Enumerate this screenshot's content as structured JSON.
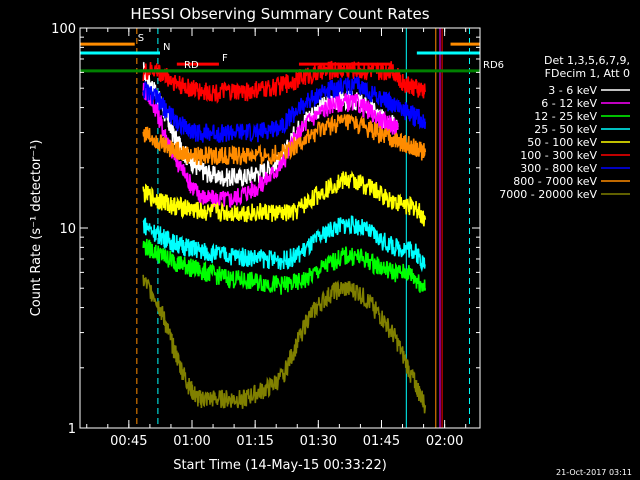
{
  "chart_data": {
    "type": "line",
    "title": "HESSI Observing Summary Count Rates",
    "xlabel": "Start Time (14-May-15 00:33:22)",
    "ylabel": "Count Rate (s⁻¹ detector⁻¹)",
    "y_scale": "log",
    "ylim": [
      1,
      100
    ],
    "xlim_minutes": [
      0,
      95
    ],
    "x_ticks": [
      {
        "label": "00:45",
        "minute": 11.6
      },
      {
        "label": "01:00",
        "minute": 26.6
      },
      {
        "label": "01:15",
        "minute": 41.6
      },
      {
        "label": "01:30",
        "minute": 56.6
      },
      {
        "label": "01:45",
        "minute": 71.6
      },
      {
        "label": "02:00",
        "minute": 86.6
      }
    ],
    "y_ticks": [
      {
        "label": "1",
        "value": 1
      },
      {
        "label": "10",
        "value": 10
      },
      {
        "label": "100",
        "value": 100
      }
    ],
    "legend_header": [
      "Det 1,3,5,6,7,9,",
      "FDecim 1, Att 0"
    ],
    "legend_position": "right",
    "series": [
      {
        "name": "3 - 6 keV",
        "color": "#ffffff",
        "x": [
          15,
          18,
          20,
          22,
          24,
          26,
          28,
          30,
          33,
          36,
          39,
          42,
          45,
          48,
          51,
          54,
          57,
          60,
          63,
          66,
          69,
          72,
          74,
          75.5
        ],
        "y": [
          62,
          48,
          38,
          30,
          25,
          22,
          20,
          19,
          18,
          18,
          18,
          19,
          20,
          22,
          30,
          36,
          40,
          43,
          44,
          43,
          40,
          35,
          34,
          32
        ]
      },
      {
        "name": "6 - 12 keV",
        "color": "#ff00ff",
        "x": [
          15,
          18,
          20,
          22,
          24,
          26,
          28,
          30,
          33,
          36,
          39,
          42,
          45,
          48,
          51,
          54,
          57,
          60,
          63,
          66,
          69,
          72,
          74,
          75.5
        ],
        "y": [
          50,
          40,
          30,
          24,
          20,
          17,
          15,
          14,
          14,
          14,
          15,
          16,
          18,
          21,
          28,
          34,
          38,
          42,
          43,
          42,
          38,
          34,
          33,
          31
        ]
      },
      {
        "name": "12 - 25 keV",
        "color": "#00ff00",
        "x": [
          15,
          18,
          20,
          22,
          24,
          26,
          28,
          30,
          33,
          36,
          39,
          42,
          45,
          48,
          51,
          54,
          57,
          60,
          63,
          66,
          69,
          72,
          75,
          78,
          80,
          82
        ],
        "y": [
          8.2,
          7.6,
          7.2,
          6.9,
          6.6,
          6.4,
          6.2,
          6.0,
          5.8,
          5.6,
          5.5,
          5.4,
          5.3,
          5.2,
          5.3,
          5.6,
          6.2,
          6.8,
          7.3,
          7.2,
          6.8,
          6.3,
          6.0,
          6.0,
          5.5,
          5.0
        ]
      },
      {
        "name": "25 - 50 keV",
        "color": "#00ffff",
        "x": [
          15,
          18,
          20,
          22,
          24,
          26,
          28,
          30,
          33,
          36,
          39,
          42,
          45,
          48,
          51,
          54,
          57,
          60,
          63,
          66,
          69,
          72,
          75,
          78,
          80,
          82
        ],
        "y": [
          10.5,
          9.5,
          9.0,
          8.5,
          8.2,
          8.0,
          7.8,
          7.6,
          7.4,
          7.3,
          7.2,
          7.1,
          7.0,
          6.9,
          7.2,
          8.0,
          9.0,
          10.0,
          10.5,
          10.3,
          9.5,
          8.6,
          8.0,
          8.0,
          7.5,
          6.5
        ]
      },
      {
        "name": "50 - 100 keV",
        "color": "#ffff00",
        "x": [
          15,
          18,
          20,
          22,
          24,
          26,
          28,
          30,
          33,
          36,
          39,
          42,
          45,
          48,
          51,
          54,
          57,
          60,
          63,
          66,
          69,
          72,
          75,
          78,
          80,
          82
        ],
        "y": [
          15,
          14,
          13.5,
          13,
          12.8,
          12.5,
          12.2,
          12,
          12,
          12,
          12,
          12,
          12,
          11.8,
          12,
          13.5,
          15,
          16.5,
          17.5,
          17,
          16,
          14.5,
          13.5,
          13,
          12.5,
          11
        ]
      },
      {
        "name": "100 - 300 keV",
        "color": "#ff0000",
        "x": [
          15,
          18,
          20,
          22,
          24,
          26,
          28,
          30,
          33,
          36,
          39,
          42,
          45,
          48,
          51,
          54,
          57,
          60,
          63,
          66,
          69,
          72,
          74,
          76,
          78,
          80,
          82
        ],
        "y": [
          60,
          62,
          58,
          55,
          52,
          50,
          49,
          48,
          48,
          48,
          48,
          49,
          50,
          52,
          55,
          58,
          60,
          62,
          62,
          62,
          61,
          60,
          64,
          55,
          52,
          50,
          48
        ]
      },
      {
        "name": "300 - 800 keV",
        "color": "#0000ff",
        "x": [
          15,
          18,
          20,
          22,
          24,
          26,
          28,
          30,
          33,
          36,
          39,
          42,
          45,
          48,
          51,
          54,
          57,
          60,
          63,
          66,
          69,
          72,
          74,
          76,
          78,
          80,
          82
        ],
        "y": [
          50,
          45,
          40,
          36,
          33,
          31,
          30,
          30,
          30,
          30,
          30,
          30,
          31,
          33,
          38,
          43,
          47,
          50,
          52,
          51,
          48,
          44,
          42,
          40,
          38,
          36,
          34
        ]
      },
      {
        "name": "800 - 7000 keV",
        "color": "#ff8c00",
        "x": [
          15,
          18,
          20,
          22,
          24,
          26,
          28,
          30,
          33,
          36,
          39,
          42,
          45,
          48,
          51,
          54,
          57,
          60,
          63,
          66,
          69,
          72,
          74,
          76,
          78,
          80,
          82
        ],
        "y": [
          30,
          28,
          26,
          25,
          24,
          23,
          23,
          23,
          23,
          23,
          23,
          23,
          23,
          24,
          26,
          28,
          31,
          33,
          34,
          33,
          31,
          29,
          28,
          27,
          26,
          25,
          24
        ]
      },
      {
        "name": "7000 - 20000 keV",
        "color": "#808000",
        "x": [
          15,
          18,
          20,
          22,
          24,
          26,
          28,
          30,
          33,
          36,
          39,
          42,
          45,
          48,
          51,
          54,
          57,
          60,
          63,
          66,
          69,
          72,
          75,
          78,
          80,
          82
        ],
        "y": [
          5.5,
          4.5,
          3.5,
          2.6,
          2.0,
          1.6,
          1.4,
          1.4,
          1.4,
          1.4,
          1.4,
          1.5,
          1.6,
          1.8,
          2.5,
          3.5,
          4.2,
          4.8,
          5.0,
          4.8,
          4.2,
          3.5,
          2.8,
          2.0,
          1.6,
          1.3
        ]
      }
    ],
    "annotations": [
      {
        "label": "S",
        "color": "#ff8c00",
        "y": 83,
        "x_start": 0,
        "x_end": 13,
        "x_start2": 88,
        "x_end2": 95
      },
      {
        "label": "N",
        "color": "#00ffff",
        "y": 75,
        "x_start": 0,
        "x_end": 19,
        "x_start2": 80,
        "x_end2": 95
      },
      {
        "label": "F",
        "color": "#ff0000",
        "y": 66,
        "x_start": 23,
        "x_end": 33,
        "x_start2": 52,
        "x_end2": 74
      },
      {
        "label": "RD",
        "color": "#006400",
        "y": 61,
        "x_start": 14,
        "x_end": 24,
        "x_start2": 76,
        "x_end2": 78
      },
      {
        "label": "RD6",
        "color": "#008000",
        "y": 61,
        "x_start": 0,
        "x_end": 95
      }
    ],
    "vertical_markers": [
      {
        "minute": 13.5,
        "color": "#ff8c00",
        "style": "dashed"
      },
      {
        "minute": 18.5,
        "color": "#00ffff",
        "style": "dashed"
      },
      {
        "minute": 77.5,
        "color": "#00ffff",
        "style": "solid"
      },
      {
        "minute": 84.5,
        "color": "#ff8c00",
        "style": "solid"
      },
      {
        "minute": 85.5,
        "color": "#ff00ff",
        "style": "solid"
      },
      {
        "minute": 86.0,
        "color": "#ff0000",
        "style": "solid"
      },
      {
        "minute": 92.5,
        "color": "#00ffff",
        "style": "dashed"
      }
    ],
    "footer": "21-Oct-2017 03:11"
  }
}
